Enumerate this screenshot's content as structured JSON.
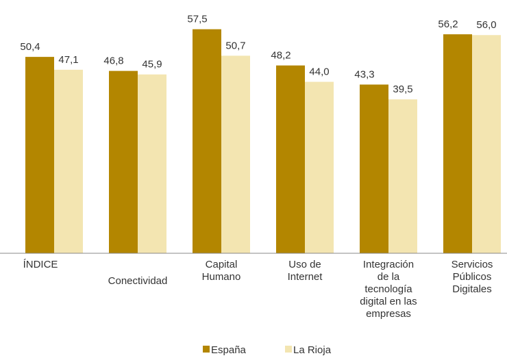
{
  "chart_data": {
    "type": "bar",
    "categories": [
      "ÍNDICE",
      "Conectividad",
      "Capital\nHumano",
      "Uso de\nInternet",
      "Integración\nde la\ntecnología\ndigital en las\nempresas",
      "Servicios\nPúblicos\nDigitales"
    ],
    "series": [
      {
        "name": "España",
        "color": "#b38600",
        "values": [
          50.4,
          46.8,
          57.5,
          48.2,
          43.3,
          56.2
        ],
        "value_labels": [
          "50,4",
          "46,8",
          "57,5",
          "48,2",
          "43,3",
          "56,2"
        ]
      },
      {
        "name": "La Rioja",
        "color": "#f3e5b1",
        "values": [
          47.1,
          45.9,
          50.7,
          44.0,
          39.5,
          56.0
        ],
        "value_labels": [
          "47,1",
          "45,9",
          "50,7",
          "44,0",
          "39,5",
          "56,0"
        ]
      }
    ],
    "ylim": [
      0,
      65
    ],
    "legend": "bottom"
  }
}
